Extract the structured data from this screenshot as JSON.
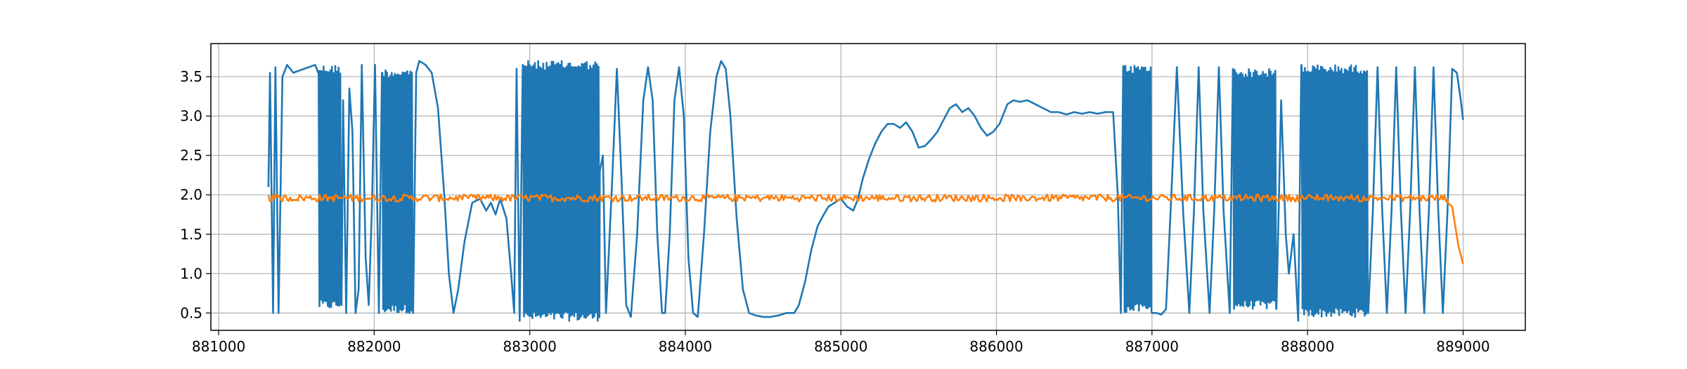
{
  "chart_data": {
    "type": "line",
    "title": "",
    "xlabel": "",
    "ylabel": "",
    "xlim": [
      880950,
      889400
    ],
    "ylim": [
      0.28,
      3.92
    ],
    "grid": true,
    "x_ticks": [
      881000,
      882000,
      883000,
      884000,
      885000,
      886000,
      887000,
      888000,
      889000
    ],
    "x_tick_labels": [
      "881000",
      "882000",
      "883000",
      "884000",
      885000,
      "886000",
      "887000",
      "888000",
      "889000"
    ],
    "y_ticks": [
      0.5,
      1.0,
      1.5,
      2.0,
      2.5,
      3.0,
      3.5
    ],
    "y_tick_labels": [
      "0.5",
      "1.0",
      "1.5",
      "2.0",
      "2.5",
      "3.0",
      "3.5"
    ],
    "series": [
      {
        "color": "#1f77b4",
        "segments": [
          {
            "type": "points",
            "points": [
              [
                881320,
                2.1
              ],
              [
                881330,
                3.55
              ],
              [
                881350,
                0.5
              ],
              [
                881365,
                3.62
              ],
              [
                881385,
                0.5
              ],
              [
                881410,
                3.5
              ],
              [
                881440,
                3.65
              ],
              [
                881480,
                3.55
              ],
              [
                881550,
                3.6
              ],
              [
                881620,
                3.65
              ],
              [
                881640,
                3.55
              ]
            ]
          },
          {
            "type": "dense",
            "x0": 881640,
            "x1": 881790,
            "n": 14,
            "lo": 0.55,
            "hi": 3.65
          },
          {
            "type": "points",
            "points": [
              [
                881790,
                0.6
              ],
              [
                881800,
                3.2
              ],
              [
                881820,
                0.5
              ],
              [
                881840,
                3.35
              ],
              [
                881860,
                2.8
              ],
              [
                881880,
                0.5
              ],
              [
                881900,
                0.8
              ],
              [
                881920,
                3.65
              ],
              [
                881945,
                1.2
              ],
              [
                881965,
                0.6
              ],
              [
                881985,
                1.8
              ],
              [
                882005,
                3.65
              ],
              [
                882030,
                0.5
              ],
              [
                882050,
                3.55
              ]
            ]
          },
          {
            "type": "dense",
            "x0": 882050,
            "x1": 882250,
            "n": 20,
            "lo": 0.5,
            "hi": 3.6
          },
          {
            "type": "points",
            "points": [
              [
                882250,
                0.5
              ],
              [
                882270,
                3.55
              ],
              [
                882290,
                3.7
              ],
              [
                882330,
                3.65
              ],
              [
                882370,
                3.55
              ],
              [
                882410,
                3.1
              ],
              [
                882450,
                2.0
              ],
              [
                882480,
                1.0
              ],
              [
                882510,
                0.5
              ],
              [
                882540,
                0.8
              ],
              [
                882580,
                1.4
              ],
              [
                882630,
                1.9
              ],
              [
                882680,
                1.95
              ],
              [
                882720,
                1.8
              ],
              [
                882750,
                1.9
              ],
              [
                882780,
                1.75
              ],
              [
                882810,
                1.95
              ],
              [
                882850,
                1.7
              ],
              [
                882880,
                1.0
              ],
              [
                882900,
                0.5
              ],
              [
                882915,
                3.6
              ],
              [
                882935,
                0.4
              ],
              [
                882955,
                3.65
              ]
            ]
          },
          {
            "type": "dense",
            "x0": 882955,
            "x1": 883450,
            "n": 46,
            "lo": 0.4,
            "hi": 3.7
          },
          {
            "type": "points",
            "points": [
              [
                883450,
                2.3
              ],
              [
                883470,
                2.5
              ],
              [
                883490,
                0.5
              ],
              [
                883530,
                2.2
              ],
              [
                883560,
                3.6
              ],
              [
                883590,
                2.2
              ],
              [
                883620,
                0.6
              ],
              [
                883650,
                0.45
              ],
              [
                883690,
                1.5
              ],
              [
                883730,
                3.2
              ],
              [
                883760,
                3.62
              ],
              [
                883790,
                3.2
              ],
              [
                883820,
                1.5
              ],
              [
                883850,
                0.5
              ],
              [
                883870,
                0.5
              ],
              [
                883900,
                1.5
              ],
              [
                883930,
                3.2
              ],
              [
                883960,
                3.62
              ],
              [
                883990,
                3.0
              ],
              [
                884020,
                1.2
              ],
              [
                884050,
                0.5
              ],
              [
                884080,
                0.45
              ],
              [
                884120,
                1.5
              ],
              [
                884160,
                2.8
              ],
              [
                884200,
                3.5
              ],
              [
                884230,
                3.7
              ],
              [
                884260,
                3.6
              ],
              [
                884290,
                3.0
              ],
              [
                884330,
                1.7
              ],
              [
                884370,
                0.8
              ],
              [
                884410,
                0.5
              ],
              [
                884450,
                0.47
              ],
              [
                884500,
                0.45
              ],
              [
                884550,
                0.45
              ],
              [
                884600,
                0.47
              ],
              [
                884650,
                0.5
              ],
              [
                884700,
                0.5
              ],
              [
                884730,
                0.6
              ],
              [
                884770,
                0.9
              ],
              [
                884810,
                1.3
              ],
              [
                884850,
                1.6
              ],
              [
                884890,
                1.75
              ],
              [
                884920,
                1.85
              ],
              [
                884960,
                1.9
              ],
              [
                885000,
                1.95
              ],
              [
                885040,
                1.85
              ],
              [
                885080,
                1.8
              ],
              [
                885110,
                1.95
              ],
              [
                885140,
                2.2
              ],
              [
                885180,
                2.45
              ],
              [
                885220,
                2.65
              ],
              [
                885260,
                2.8
              ],
              [
                885300,
                2.9
              ],
              [
                885340,
                2.9
              ],
              [
                885380,
                2.85
              ],
              [
                885420,
                2.92
              ],
              [
                885460,
                2.8
              ],
              [
                885500,
                2.6
              ],
              [
                885540,
                2.62
              ],
              [
                885580,
                2.7
              ],
              [
                885620,
                2.8
              ],
              [
                885660,
                2.95
              ],
              [
                885700,
                3.1
              ],
              [
                885740,
                3.15
              ],
              [
                885780,
                3.05
              ],
              [
                885820,
                3.1
              ],
              [
                885860,
                3.0
              ],
              [
                885900,
                2.85
              ],
              [
                885940,
                2.75
              ],
              [
                885980,
                2.8
              ],
              [
                886020,
                2.9
              ],
              [
                886070,
                3.15
              ],
              [
                886110,
                3.2
              ],
              [
                886150,
                3.18
              ],
              [
                886200,
                3.2
              ],
              [
                886250,
                3.15
              ],
              [
                886300,
                3.1
              ],
              [
                886350,
                3.05
              ],
              [
                886400,
                3.05
              ],
              [
                886450,
                3.02
              ],
              [
                886500,
                3.05
              ],
              [
                886550,
                3.03
              ],
              [
                886600,
                3.05
              ],
              [
                886650,
                3.03
              ],
              [
                886700,
                3.05
              ],
              [
                886750,
                3.05
              ],
              [
                886780,
                2.0
              ],
              [
                886800,
                0.5
              ],
              [
                886815,
                3.62
              ]
            ]
          },
          {
            "type": "dense",
            "x0": 886815,
            "x1": 887000,
            "n": 16,
            "lo": 0.5,
            "hi": 3.65
          },
          {
            "type": "points",
            "points": [
              [
                887000,
                0.5
              ],
              [
                887030,
                0.5
              ],
              [
                887060,
                0.48
              ],
              [
                887090,
                0.55
              ],
              [
                887120,
                1.8
              ],
              [
                887160,
                3.62
              ],
              [
                887200,
                1.8
              ],
              [
                887240,
                0.5
              ],
              [
                887270,
                1.8
              ],
              [
                887300,
                3.62
              ],
              [
                887330,
                1.8
              ],
              [
                887370,
                0.5
              ],
              [
                887400,
                1.8
              ],
              [
                887430,
                3.62
              ],
              [
                887460,
                1.8
              ],
              [
                887500,
                0.5
              ],
              [
                887520,
                3.6
              ]
            ]
          },
          {
            "type": "dense",
            "x0": 887520,
            "x1": 887800,
            "n": 28,
            "lo": 0.55,
            "hi": 3.6
          },
          {
            "type": "points",
            "points": [
              [
                887800,
                0.55
              ],
              [
                887830,
                3.2
              ],
              [
                887860,
                1.5
              ],
              [
                887880,
                1.0
              ],
              [
                887910,
                1.5
              ],
              [
                887940,
                0.4
              ],
              [
                887960,
                3.65
              ]
            ]
          },
          {
            "type": "dense",
            "x0": 887960,
            "x1": 888390,
            "n": 42,
            "lo": 0.45,
            "hi": 3.65
          },
          {
            "type": "points",
            "points": [
              [
                888390,
                0.5
              ],
              [
                888420,
                1.8
              ],
              [
                888450,
                3.62
              ],
              [
                888480,
                1.8
              ],
              [
                888510,
                0.5
              ],
              [
                888540,
                1.8
              ],
              [
                888570,
                3.62
              ],
              [
                888600,
                1.8
              ],
              [
                888630,
                0.5
              ],
              [
                888660,
                1.8
              ],
              [
                888690,
                3.62
              ],
              [
                888720,
                1.8
              ],
              [
                888750,
                0.5
              ],
              [
                888780,
                1.8
              ],
              [
                888810,
                3.62
              ],
              [
                888840,
                1.8
              ],
              [
                888870,
                0.5
              ],
              [
                888900,
                1.8
              ],
              [
                888930,
                3.6
              ],
              [
                888960,
                3.55
              ],
              [
                888985,
                3.2
              ],
              [
                889000,
                2.95
              ]
            ]
          }
        ]
      },
      {
        "color": "#ff7f0e",
        "segments": [
          {
            "type": "noise",
            "x0": 881320,
            "x1": 888900,
            "n": 760,
            "center": 1.96,
            "amp": 0.045
          },
          {
            "type": "points",
            "points": [
              [
                888900,
                1.9
              ],
              [
                888930,
                1.85
              ],
              [
                888950,
                1.6
              ],
              [
                888970,
                1.35
              ],
              [
                888990,
                1.2
              ],
              [
                889000,
                1.12
              ]
            ]
          }
        ]
      }
    ]
  }
}
